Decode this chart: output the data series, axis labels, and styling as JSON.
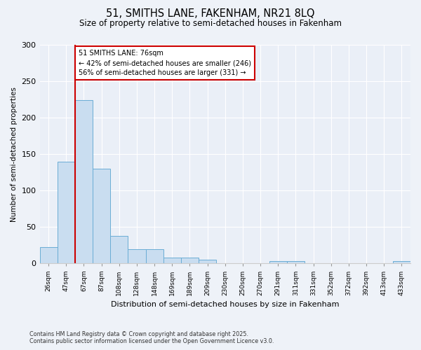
{
  "title1": "51, SMITHS LANE, FAKENHAM, NR21 8LQ",
  "title2": "Size of property relative to semi-detached houses in Fakenham",
  "xlabel": "Distribution of semi-detached houses by size in Fakenham",
  "ylabel": "Number of semi-detached properties",
  "bins": [
    "26sqm",
    "47sqm",
    "67sqm",
    "87sqm",
    "108sqm",
    "128sqm",
    "148sqm",
    "169sqm",
    "189sqm",
    "209sqm",
    "230sqm",
    "250sqm",
    "270sqm",
    "291sqm",
    "311sqm",
    "331sqm",
    "352sqm",
    "372sqm",
    "392sqm",
    "413sqm",
    "433sqm"
  ],
  "values": [
    22,
    140,
    224,
    130,
    38,
    19,
    19,
    8,
    8,
    5,
    0,
    0,
    0,
    3,
    3,
    0,
    0,
    0,
    0,
    0,
    3
  ],
  "bar_color": "#c9ddf0",
  "bar_edge_color": "#6aadd5",
  "vline_color": "#cc0000",
  "annotation_title": "51 SMITHS LANE: 76sqm",
  "annotation_line1": "← 42% of semi-detached houses are smaller (246)",
  "annotation_line2": "56% of semi-detached houses are larger (331) →",
  "annotation_box_color": "#ffffff",
  "annotation_box_edgecolor": "#cc0000",
  "ylim": [
    0,
    300
  ],
  "yticks": [
    0,
    50,
    100,
    150,
    200,
    250,
    300
  ],
  "footnote1": "Contains HM Land Registry data © Crown copyright and database right 2025.",
  "footnote2": "Contains public sector information licensed under the Open Government Licence v3.0.",
  "bg_color": "#eef2f8",
  "plot_bg_color": "#eaeff7"
}
